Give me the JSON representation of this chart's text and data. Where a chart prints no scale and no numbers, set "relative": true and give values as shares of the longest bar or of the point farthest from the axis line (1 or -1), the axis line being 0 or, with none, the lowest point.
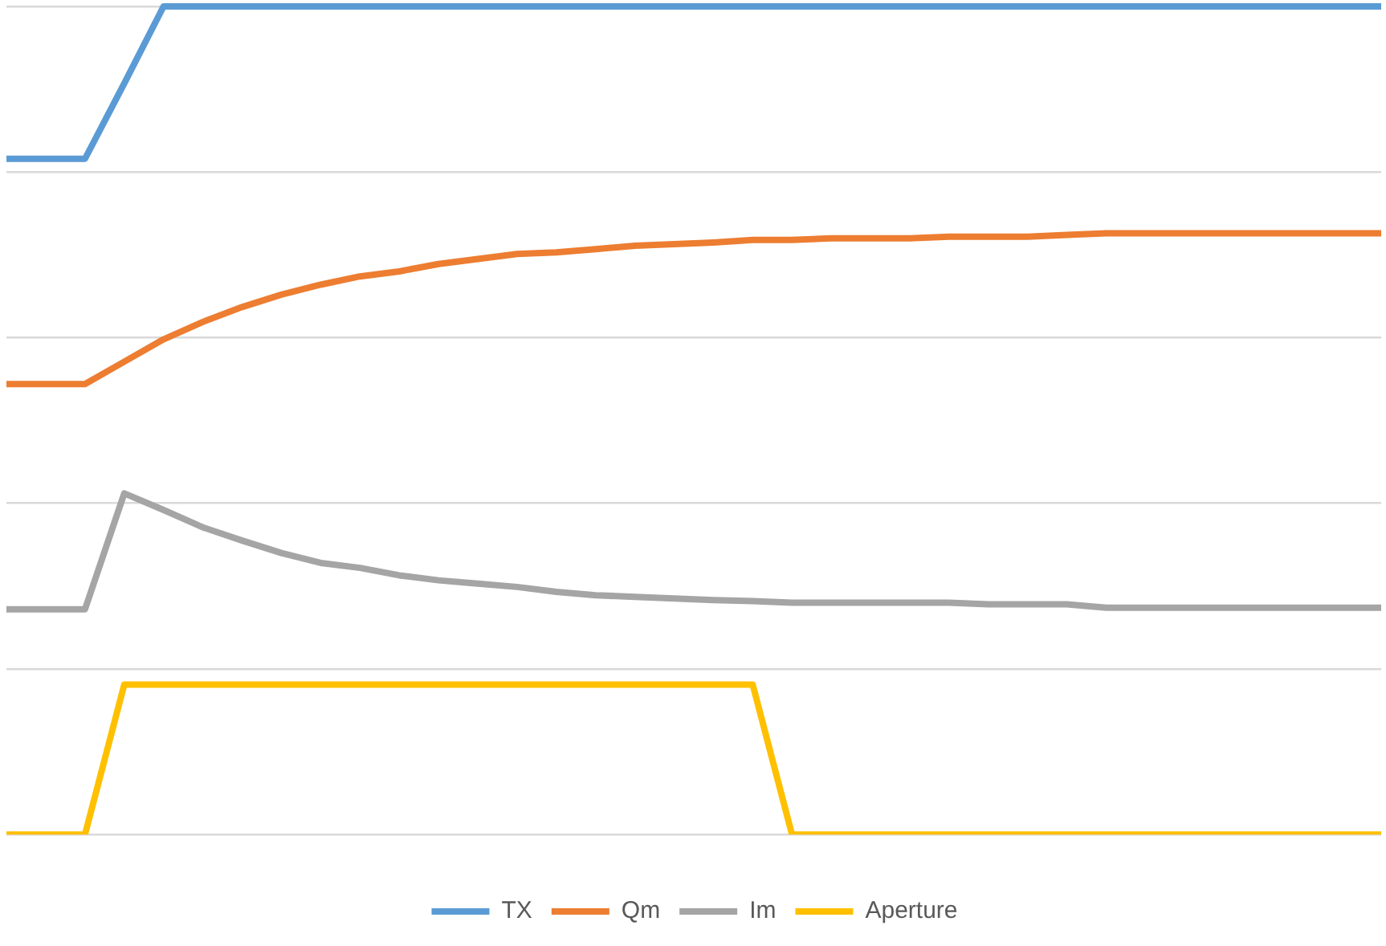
{
  "chart_data": {
    "type": "line",
    "relative": true,
    "grid": "y",
    "legend": "bottom",
    "marker": "none",
    "line_style": "solid",
    "categories": [
      null,
      null,
      null,
      null,
      null,
      null,
      null,
      null,
      null,
      null,
      null,
      null,
      null,
      null,
      null,
      null,
      null,
      null,
      null,
      null,
      null,
      null,
      null,
      null,
      null,
      null,
      null,
      null,
      null,
      null,
      null,
      null,
      null,
      null,
      null,
      null
    ],
    "series": [
      {
        "name": "TX",
        "color": "#5b9bd5",
        "values": [
          0.816,
          0.816,
          0.816,
          0.907,
          1,
          1,
          1,
          1,
          1,
          1,
          1,
          1,
          1,
          1,
          1,
          1,
          1,
          1,
          1,
          1,
          1,
          1,
          1,
          1,
          1,
          1,
          1,
          1,
          1,
          1,
          1,
          1,
          1,
          1,
          1,
          1
        ]
      },
      {
        "name": "Qm",
        "color": "#ed7d31",
        "values": [
          0.544,
          0.544,
          0.544,
          0.571,
          0.598,
          0.619,
          0.637,
          0.652,
          0.664,
          0.674,
          0.68,
          0.689,
          0.695,
          0.701,
          0.703,
          0.707,
          0.711,
          0.713,
          0.715,
          0.718,
          0.718,
          0.72,
          0.72,
          0.72,
          0.722,
          0.722,
          0.722,
          0.724,
          0.726,
          0.726,
          0.726,
          0.726,
          0.726,
          0.726,
          0.726,
          0.726
        ]
      },
      {
        "name": "Im",
        "color": "#a5a5a5",
        "values": [
          0.272,
          0.272,
          0.272,
          0.412,
          0.392,
          0.371,
          0.355,
          0.34,
          0.328,
          0.322,
          0.313,
          0.307,
          0.303,
          0.299,
          0.293,
          0.289,
          0.287,
          0.285,
          0.283,
          0.282,
          0.28,
          0.28,
          0.28,
          0.28,
          0.28,
          0.278,
          0.278,
          0.278,
          0.274,
          0.274,
          0.274,
          0.274,
          0.274,
          0.274,
          0.274,
          0.274
        ]
      },
      {
        "name": "Aperture",
        "color": "#ffc000",
        "values": [
          0,
          0,
          0,
          0.181,
          0.181,
          0.181,
          0.181,
          0.181,
          0.181,
          0.181,
          0.181,
          0.181,
          0.181,
          0.181,
          0.181,
          0.181,
          0.181,
          0.181,
          0.181,
          0.181,
          0,
          0,
          0,
          0,
          0,
          0,
          0,
          0,
          0,
          0,
          0,
          0,
          0,
          0,
          0,
          0
        ]
      }
    ]
  }
}
